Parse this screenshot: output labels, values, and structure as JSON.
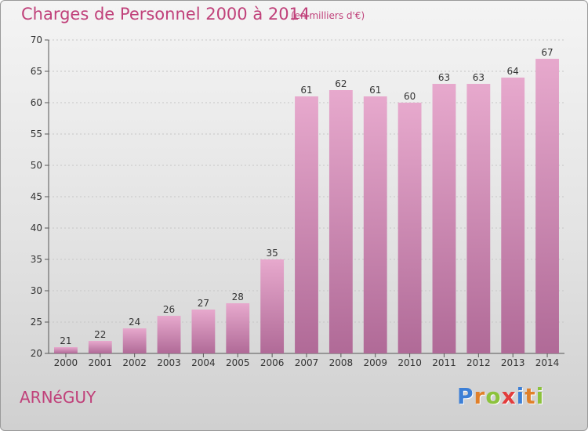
{
  "chart_data": {
    "type": "bar",
    "title": "Charges de Personnel 2000 à 2014",
    "subtitle": "(en milliers d'€)",
    "xlabel": "",
    "ylabel": "",
    "categories": [
      "2000",
      "2001",
      "2002",
      "2003",
      "2004",
      "2005",
      "2006",
      "2007",
      "2008",
      "2009",
      "2010",
      "2011",
      "2012",
      "2013",
      "2014"
    ],
    "values": [
      21,
      22,
      24,
      26,
      27,
      28,
      35,
      61,
      62,
      61,
      60,
      63,
      63,
      64,
      67
    ],
    "ylim": [
      20,
      70
    ],
    "yticks": [
      20,
      25,
      30,
      35,
      40,
      45,
      50,
      55,
      60,
      65,
      70
    ],
    "grid": true,
    "bar_color": "#d98db8"
  },
  "footer": {
    "commune": "ARNéGUY",
    "brand": [
      "P",
      "r",
      "o",
      "x",
      "i",
      "t",
      "i"
    ],
    "brand_colors": [
      "#3c7fd6",
      "#e0802a",
      "#8cc23c",
      "#e23c3c",
      "#3c7fd6",
      "#e0802a",
      "#8cc23c"
    ]
  }
}
